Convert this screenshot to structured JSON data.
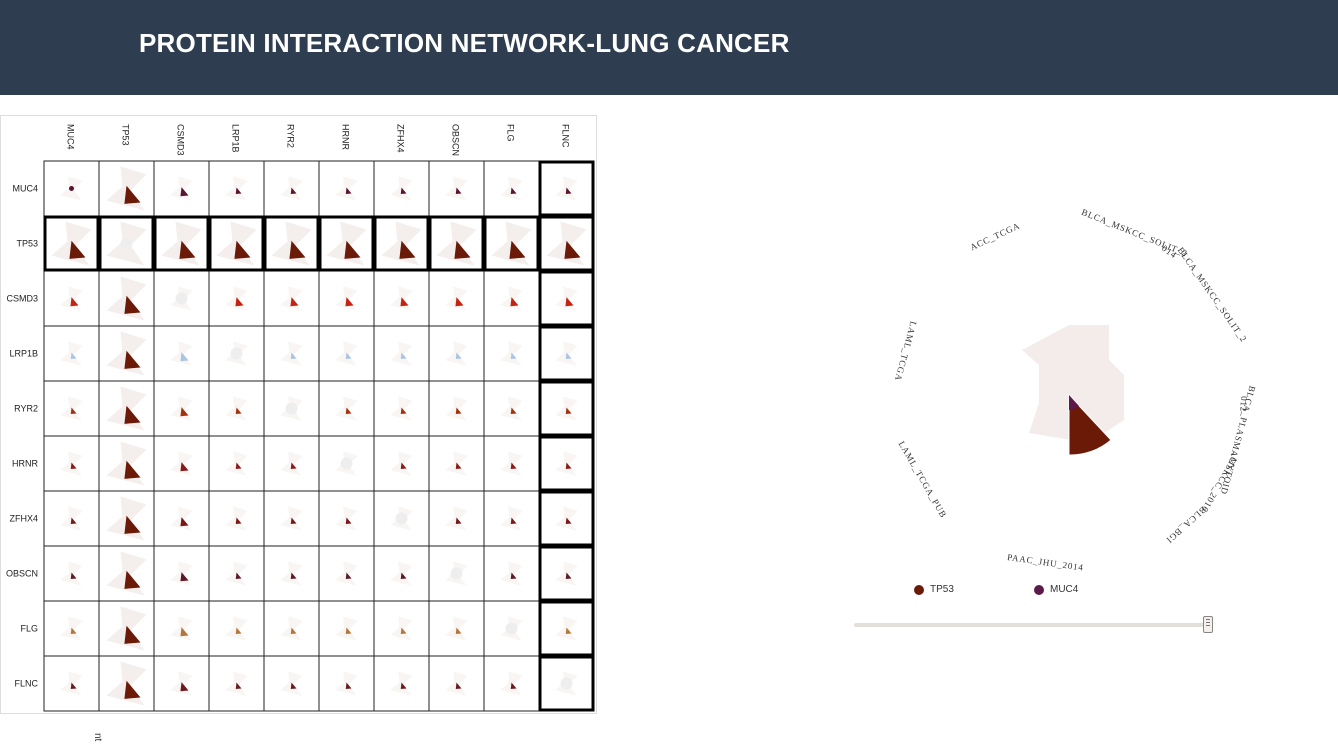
{
  "page": {
    "title": "PROTEIN INTERACTION NETWORK-LUNG CANCER"
  },
  "chart_data": [
    {
      "type": "heatmap",
      "title": "",
      "rows": [
        "MUC4",
        "TP53",
        "CSMD3",
        "LRP1B",
        "RYR2",
        "HRNR",
        "ZFHX4",
        "OBSCN",
        "FLG",
        "FLNC"
      ],
      "columns": [
        "MUC4",
        "TP53",
        "CSMD3",
        "LRP1B",
        "RYR2",
        "HRNR",
        "ZFHX4",
        "OBSCN",
        "FLG",
        "FLNC"
      ],
      "highlighted_rows": [
        "TP53"
      ],
      "highlighted_columns": [
        "FLNC"
      ],
      "row_colors": {
        "MUC4": "#5c1230",
        "TP53": "#6b1a08",
        "CSMD3": "#c62212",
        "LRP1B": "#aac4e6",
        "RYR2": "#a5300e",
        "HRNR": "#8c1a1a",
        "ZFHX4": "#7a1818",
        "OBSCN": "#5c1a2a",
        "FLG": "#b5763a",
        "FLNC": "#6b1a20"
      },
      "background_color": "#f3ecea"
    },
    {
      "type": "pie",
      "subtype": "radial",
      "title": "",
      "labels": [
        "ACC_TCGA",
        "BLCA_MSKCC_SOLIT_2",
        "014",
        "BLCA_MSKCC_SOLIT_2",
        "012",
        "BLCA_PLASMACYTOID",
        "_MSKCC_2016",
        "BLCA_BGI",
        "PAAC_JHU_2014",
        "LAML_TCGA_PUB",
        "LAML_TCGA"
      ],
      "series": [
        {
          "name": "TP53",
          "color": "#6b1a08"
        },
        {
          "name": "MUC4",
          "color": "#5c1a4a"
        }
      ]
    }
  ],
  "slider": {
    "value": 1.0
  },
  "footer": {
    "mark": "nt"
  }
}
